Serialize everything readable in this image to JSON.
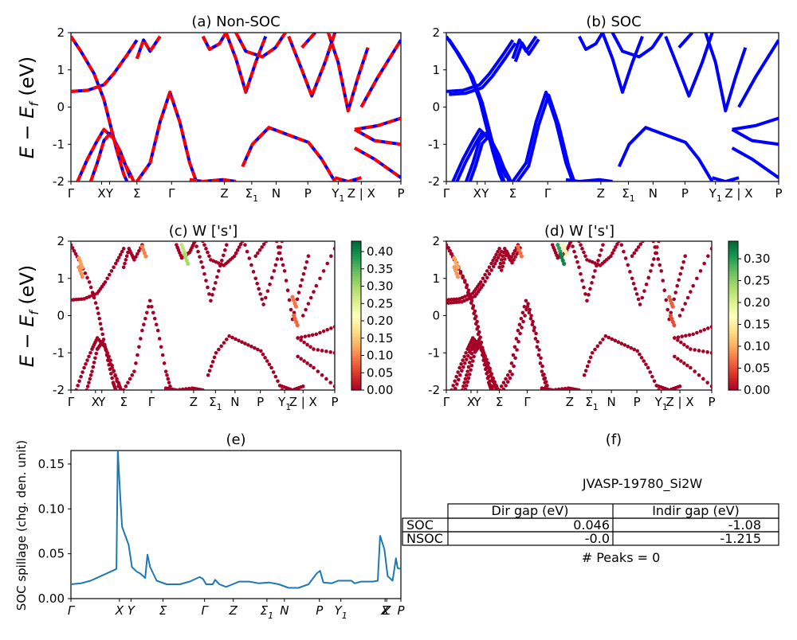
{
  "panels": {
    "a": {
      "title": "(a) Non-SOC"
    },
    "b": {
      "title": "(b) SOC"
    },
    "c": {
      "title": "(c)  W ['s']"
    },
    "d": {
      "title": "(d) W ['s']"
    },
    "e": {
      "title": "(e)"
    },
    "f": {
      "title": "(f)"
    }
  },
  "band_ylabel": "E − E",
  "band_ylabel_sub": "f",
  "band_ylabel_unit": " (eV)",
  "spillage_ylabel": "SOC spillage (chg. den. unit)",
  "kpath_labels": [
    {
      "t": "Γ",
      "pos": 0.0
    },
    {
      "t": "X",
      "pos": 0.093
    },
    {
      "t": "Y",
      "pos": 0.117
    },
    {
      "t": "Σ",
      "pos": 0.2
    },
    {
      "t": "Γ",
      "pos": 0.305
    },
    {
      "t": "Z",
      "pos": 0.465
    },
    {
      "t": "Σ",
      "sub": "1",
      "pos": 0.548
    },
    {
      "t": "N",
      "pos": 0.622
    },
    {
      "t": "P",
      "pos": 0.718
    },
    {
      "t": "Y",
      "sub": "1",
      "pos": 0.81
    },
    {
      "t": "Z | X",
      "pos": 0.88
    },
    {
      "t": "P",
      "pos": 1.0
    }
  ],
  "spill_xticks": [
    {
      "t": "Γ",
      "pos": 0.0
    },
    {
      "t": "X",
      "pos": 0.147
    },
    {
      "t": "Y",
      "pos": 0.182
    },
    {
      "t": "Σ",
      "pos": 0.279
    },
    {
      "t": "Γ",
      "pos": 0.405
    },
    {
      "t": "Z",
      "pos": 0.492
    },
    {
      "t": "Σ",
      "sub": "1",
      "pos": 0.594
    },
    {
      "t": "N",
      "pos": 0.647
    },
    {
      "t": "P",
      "pos": 0.753
    },
    {
      "t": "Y",
      "sub": "1",
      "pos": 0.818
    },
    {
      "t": "X",
      "pos": 0.952
    },
    {
      "t": "Z",
      "pos": 0.957
    },
    {
      "t": "P",
      "pos": 1.0
    }
  ],
  "colorbar_c_ticks": [
    "0.00",
    "0.05",
    "0.10",
    "0.15",
    "0.20",
    "0.25",
    "0.30",
    "0.35",
    "0.40"
  ],
  "colorbar_d_ticks": [
    "0.00",
    "0.05",
    "0.10",
    "0.15",
    "0.20",
    "0.25",
    "0.30"
  ],
  "table": {
    "material": "JVASP-19780_Si2W",
    "headers": [
      "",
      "Dir gap (eV)",
      "Indir gap (eV)"
    ],
    "rows": [
      {
        "label": "SOC",
        "dir": "0.046",
        "indir": "-1.08"
      },
      {
        "label": "NSOC",
        "dir": "-0.0",
        "indir": "-1.215"
      }
    ],
    "peaks": "# Peaks = 0"
  },
  "chart_data": [
    {
      "type": "line",
      "panel": "(a) Non-SOC",
      "ylabel": "E − E_f (eV)",
      "ylim": [
        -2,
        2
      ],
      "yticks": [
        -2,
        -1,
        0,
        1,
        2
      ],
      "series": [
        {
          "color": "#0000ff",
          "style": "solid"
        },
        {
          "color": "#ff0000",
          "style": "dashed"
        }
      ],
      "bands": [
        [
          [
            0.0,
            0.42
          ],
          [
            0.05,
            0.45
          ],
          [
            0.1,
            0.6
          ],
          [
            0.13,
            0.9
          ],
          [
            0.17,
            1.4
          ],
          [
            0.2,
            1.8
          ]
        ],
        [
          [
            0.0,
            1.9
          ],
          [
            0.03,
            1.5
          ],
          [
            0.07,
            0.9
          ],
          [
            0.1,
            0.2
          ],
          [
            0.12,
            -0.5
          ],
          [
            0.14,
            -1.2
          ],
          [
            0.16,
            -1.8
          ],
          [
            0.17,
            -2.0
          ]
        ],
        [
          [
            0.02,
            -2.0
          ],
          [
            0.05,
            -1.4
          ],
          [
            0.08,
            -0.9
          ],
          [
            0.1,
            -0.6
          ],
          [
            0.13,
            -0.85
          ],
          [
            0.15,
            -1.3
          ],
          [
            0.18,
            -1.8
          ],
          [
            0.19,
            -2.0
          ]
        ],
        [
          [
            0.06,
            -2.0
          ],
          [
            0.08,
            -1.5
          ],
          [
            0.1,
            -0.9
          ],
          [
            0.12,
            -0.7
          ],
          [
            0.15,
            -1.2
          ],
          [
            0.18,
            -1.9
          ]
        ],
        [
          [
            0.2,
            1.3
          ],
          [
            0.22,
            1.8
          ],
          [
            0.24,
            1.5
          ],
          [
            0.27,
            1.9
          ]
        ],
        [
          [
            0.2,
            -2.0
          ],
          [
            0.24,
            -1.5
          ],
          [
            0.27,
            -0.4
          ],
          [
            0.3,
            0.4
          ],
          [
            0.33,
            -0.4
          ],
          [
            0.36,
            -1.5
          ],
          [
            0.38,
            -2.0
          ]
        ],
        [
          [
            0.36,
            -1.95
          ],
          [
            0.4,
            -2.0
          ],
          [
            0.46,
            -1.95
          ],
          [
            0.5,
            -2.0
          ]
        ],
        [
          [
            0.4,
            1.9
          ],
          [
            0.42,
            1.55
          ],
          [
            0.45,
            1.7
          ],
          [
            0.47,
            2.0
          ]
        ],
        [
          [
            0.47,
            2.0
          ],
          [
            0.5,
            1.3
          ],
          [
            0.53,
            0.4
          ],
          [
            0.56,
            1.2
          ],
          [
            0.59,
            1.9
          ]
        ],
        [
          [
            0.5,
            2.0
          ],
          [
            0.53,
            1.5
          ],
          [
            0.58,
            1.35
          ],
          [
            0.62,
            1.6
          ],
          [
            0.65,
            2.0
          ]
        ],
        [
          [
            0.52,
            -1.6
          ],
          [
            0.55,
            -1.0
          ],
          [
            0.6,
            -0.55
          ],
          [
            0.66,
            -0.75
          ],
          [
            0.72,
            -0.95
          ],
          [
            0.76,
            -1.4
          ],
          [
            0.8,
            -2.0
          ]
        ],
        [
          [
            0.66,
            1.9
          ],
          [
            0.7,
            1.0
          ],
          [
            0.73,
            0.3
          ],
          [
            0.77,
            1.2
          ],
          [
            0.8,
            2.0
          ]
        ],
        [
          [
            0.7,
            1.6
          ],
          [
            0.74,
            2.0
          ]
        ],
        [
          [
            0.78,
            2.0
          ],
          [
            0.81,
            1.2
          ],
          [
            0.84,
            -0.1
          ],
          [
            0.87,
            0.8
          ],
          [
            0.9,
            1.6
          ]
        ],
        [
          [
            0.8,
            -1.9
          ],
          [
            0.84,
            -2.0
          ],
          [
            0.88,
            -1.9
          ]
        ],
        [
          [
            0.86,
            -0.6
          ],
          [
            0.92,
            -0.9
          ],
          [
            1.0,
            -1.0
          ]
        ],
        [
          [
            0.86,
            -0.6
          ],
          [
            0.93,
            -0.5
          ],
          [
            1.0,
            -0.3
          ]
        ],
        [
          [
            0.86,
            -1.1
          ],
          [
            0.92,
            -1.4
          ],
          [
            1.0,
            -1.9
          ]
        ],
        [
          [
            0.88,
            0.0
          ],
          [
            0.93,
            0.8
          ],
          [
            1.0,
            1.8
          ]
        ]
      ]
    },
    {
      "type": "line",
      "panel": "(b) SOC",
      "ylim": [
        -2,
        2
      ],
      "series": [
        {
          "color": "#0000ff",
          "style": "solid"
        }
      ],
      "bands": "same curves as (a), doubled near X, Y and Σ by spin-orbit splitting"
    },
    {
      "type": "scatter",
      "panel": "(c)  W ['s']",
      "ylim": [
        -2,
        2
      ],
      "colorbar": {
        "cmap": "RdYlGn",
        "range": [
          0.0,
          0.43
        ]
      },
      "highlights": [
        {
          "x": 0.03,
          "y": 1.55,
          "w": 0.12
        },
        {
          "x": 0.03,
          "y": 1.3,
          "w": 0.11
        },
        {
          "x": 0.27,
          "y": 1.85,
          "w": 0.1
        },
        {
          "x": 0.42,
          "y": 1.9,
          "w": 0.28
        },
        {
          "x": 0.43,
          "y": 1.65,
          "w": 0.3
        },
        {
          "x": 0.84,
          "y": 0.5,
          "w": 0.09
        },
        {
          "x": 0.845,
          "y": 0.0,
          "w": 0.08
        }
      ]
    },
    {
      "type": "scatter",
      "panel": "(d) W ['s']",
      "ylim": [
        -2,
        2
      ],
      "colorbar": {
        "cmap": "RdYlGn",
        "range": [
          0.0,
          0.34
        ]
      },
      "highlights": [
        {
          "x": 0.03,
          "y": 1.55,
          "w": 0.1
        },
        {
          "x": 0.03,
          "y": 1.3,
          "w": 0.09
        },
        {
          "x": 0.27,
          "y": 1.85,
          "w": 0.07
        },
        {
          "x": 0.42,
          "y": 1.9,
          "w": 0.3
        },
        {
          "x": 0.43,
          "y": 1.65,
          "w": 0.32
        },
        {
          "x": 0.44,
          "y": 1.9,
          "w": 0.18
        },
        {
          "x": 0.84,
          "y": 0.5,
          "w": 0.06
        },
        {
          "x": 0.845,
          "y": 0.0,
          "w": 0.05
        }
      ]
    },
    {
      "type": "line",
      "panel": "(e)",
      "ylabel": "SOC spillage (chg. den. unit)",
      "ylim": [
        0.0,
        0.165
      ],
      "yticks": [
        0.0,
        0.05,
        0.1,
        0.15
      ],
      "color": "#1f77b4",
      "points": [
        [
          0.0,
          0.016
        ],
        [
          0.03,
          0.017
        ],
        [
          0.06,
          0.02
        ],
        [
          0.09,
          0.025
        ],
        [
          0.12,
          0.03
        ],
        [
          0.138,
          0.033
        ],
        [
          0.142,
          0.165
        ],
        [
          0.15,
          0.11
        ],
        [
          0.155,
          0.08
        ],
        [
          0.165,
          0.07
        ],
        [
          0.175,
          0.06
        ],
        [
          0.185,
          0.035
        ],
        [
          0.2,
          0.03
        ],
        [
          0.21,
          0.028
        ],
        [
          0.225,
          0.023
        ],
        [
          0.232,
          0.049
        ],
        [
          0.24,
          0.035
        ],
        [
          0.26,
          0.02
        ],
        [
          0.29,
          0.016
        ],
        [
          0.33,
          0.016
        ],
        [
          0.36,
          0.019
        ],
        [
          0.39,
          0.024
        ],
        [
          0.4,
          0.022
        ],
        [
          0.41,
          0.016
        ],
        [
          0.43,
          0.016
        ],
        [
          0.437,
          0.021
        ],
        [
          0.45,
          0.016
        ],
        [
          0.47,
          0.013
        ],
        [
          0.49,
          0.016
        ],
        [
          0.51,
          0.019
        ],
        [
          0.54,
          0.019
        ],
        [
          0.57,
          0.017
        ],
        [
          0.6,
          0.018
        ],
        [
          0.63,
          0.016
        ],
        [
          0.66,
          0.012
        ],
        [
          0.69,
          0.012
        ],
        [
          0.72,
          0.016
        ],
        [
          0.745,
          0.028
        ],
        [
          0.755,
          0.031
        ],
        [
          0.765,
          0.018
        ],
        [
          0.79,
          0.017
        ],
        [
          0.81,
          0.02
        ],
        [
          0.85,
          0.02
        ],
        [
          0.86,
          0.017
        ],
        [
          0.88,
          0.019
        ],
        [
          0.915,
          0.019
        ],
        [
          0.93,
          0.02
        ],
        [
          0.937,
          0.07
        ],
        [
          0.95,
          0.055
        ],
        [
          0.96,
          0.025
        ],
        [
          0.975,
          0.02
        ],
        [
          0.985,
          0.045
        ],
        [
          0.99,
          0.034
        ],
        [
          1.0,
          0.033
        ]
      ]
    }
  ]
}
